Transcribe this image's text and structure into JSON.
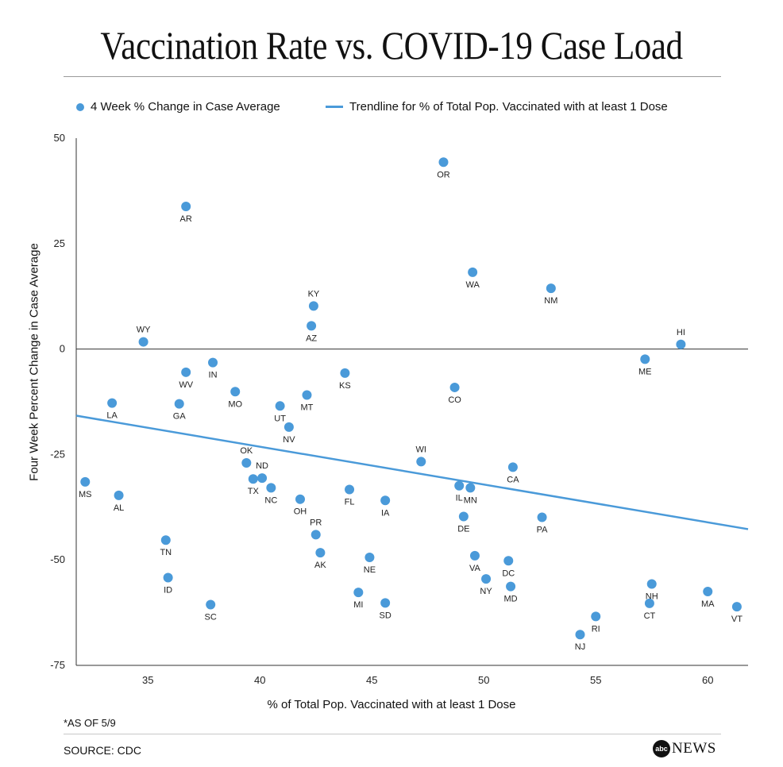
{
  "title": "Vaccination Rate vs. COVID-19 Case Load",
  "legend": {
    "scatter_label": "4 Week % Change in Case Average",
    "trend_label": "Trendline for % of Total Pop. Vaccinated with at least 1 Dose"
  },
  "footnote": "*AS OF 5/9",
  "source": "SOURCE: CDC",
  "brand": {
    "logo": "abc",
    "name": "NEWS"
  },
  "colors": {
    "point": "#4a9ad9",
    "trend": "#4a9ad9",
    "axis": "#333333"
  },
  "chart_data": {
    "type": "scatter",
    "title": "Vaccination Rate vs. COVID-19 Case Load",
    "xlabel": "% of Total Pop. Vaccinated with at least 1 Dose",
    "ylabel": "Four Week Percent Change in Case Average",
    "xlim": [
      31.8,
      61.8
    ],
    "ylim": [
      -75,
      50
    ],
    "xticks": [
      35,
      40,
      45,
      50,
      55,
      60
    ],
    "yticks": [
      50,
      25,
      0,
      -25,
      -50,
      -75
    ],
    "zero_line": true,
    "series": [
      {
        "name": "4 Week % Change in Case Average",
        "points": [
          {
            "label": "MS",
            "x": 32.2,
            "y": -31.5
          },
          {
            "label": "LA",
            "x": 33.4,
            "y": -12.8
          },
          {
            "label": "AL",
            "x": 33.7,
            "y": -34.7
          },
          {
            "label": "WY",
            "x": 34.8,
            "y": 1.7
          },
          {
            "label": "TN",
            "x": 35.8,
            "y": -45.3
          },
          {
            "label": "ID",
            "x": 35.9,
            "y": -54.2
          },
          {
            "label": "AR",
            "x": 36.7,
            "y": 33.8
          },
          {
            "label": "WV",
            "x": 36.7,
            "y": -5.5
          },
          {
            "label": "GA",
            "x": 36.4,
            "y": -13.0
          },
          {
            "label": "IN",
            "x": 37.9,
            "y": -3.2
          },
          {
            "label": "SC",
            "x": 37.8,
            "y": -60.6
          },
          {
            "label": "MO",
            "x": 38.9,
            "y": -10.1
          },
          {
            "label": "OK",
            "x": 39.4,
            "y": -27.0
          },
          {
            "label": "TX",
            "x": 39.7,
            "y": -30.8
          },
          {
            "label": "ND",
            "x": 40.1,
            "y": -30.6
          },
          {
            "label": "NC",
            "x": 40.5,
            "y": -32.9
          },
          {
            "label": "UT",
            "x": 40.9,
            "y": -13.5
          },
          {
            "label": "NV",
            "x": 41.3,
            "y": -18.5
          },
          {
            "label": "OH",
            "x": 41.8,
            "y": -35.6
          },
          {
            "label": "MT",
            "x": 42.1,
            "y": -10.9
          },
          {
            "label": "KY",
            "x": 42.4,
            "y": 10.2
          },
          {
            "label": "AZ",
            "x": 42.3,
            "y": 5.5
          },
          {
            "label": "PR",
            "x": 42.5,
            "y": -44.0
          },
          {
            "label": "AK",
            "x": 42.7,
            "y": -48.3
          },
          {
            "label": "KS",
            "x": 43.8,
            "y": -5.7
          },
          {
            "label": "FL",
            "x": 44.0,
            "y": -33.3
          },
          {
            "label": "MI",
            "x": 44.4,
            "y": -57.7
          },
          {
            "label": "NE",
            "x": 44.9,
            "y": -49.4
          },
          {
            "label": "IA",
            "x": 45.6,
            "y": -35.9
          },
          {
            "label": "SD",
            "x": 45.6,
            "y": -60.2
          },
          {
            "label": "WI",
            "x": 47.2,
            "y": -26.7
          },
          {
            "label": "OR",
            "x": 48.2,
            "y": 44.3
          },
          {
            "label": "CO",
            "x": 48.7,
            "y": -9.1
          },
          {
            "label": "IL",
            "x": 48.9,
            "y": -32.4
          },
          {
            "label": "DE",
            "x": 49.1,
            "y": -39.7
          },
          {
            "label": "MN",
            "x": 49.4,
            "y": -32.9
          },
          {
            "label": "WA",
            "x": 49.5,
            "y": 18.2
          },
          {
            "label": "VA",
            "x": 49.6,
            "y": -49.0
          },
          {
            "label": "NY",
            "x": 50.1,
            "y": -54.5
          },
          {
            "label": "DC",
            "x": 51.1,
            "y": -50.2
          },
          {
            "label": "MD",
            "x": 51.2,
            "y": -56.3
          },
          {
            "label": "CA",
            "x": 51.3,
            "y": -28.0
          },
          {
            "label": "PA",
            "x": 52.6,
            "y": -39.9
          },
          {
            "label": "NM",
            "x": 53.0,
            "y": 14.4
          },
          {
            "label": "NJ",
            "x": 54.3,
            "y": -67.7
          },
          {
            "label": "RI",
            "x": 55.0,
            "y": -63.4
          },
          {
            "label": "ME",
            "x": 57.2,
            "y": -2.4
          },
          {
            "label": "NH",
            "x": 57.5,
            "y": -55.7
          },
          {
            "label": "CT",
            "x": 57.4,
            "y": -60.3
          },
          {
            "label": "MA",
            "x": 60.0,
            "y": -57.5
          },
          {
            "label": "HI",
            "x": 58.8,
            "y": 1.1
          },
          {
            "label": "VT",
            "x": 61.3,
            "y": -61.1
          }
        ]
      }
    ],
    "trendline": {
      "name": "Trendline for % of Total Pop. Vaccinated with at least 1 Dose",
      "points": [
        {
          "x": 31.8,
          "y": -15.8
        },
        {
          "x": 61.8,
          "y": -42.7
        }
      ]
    }
  }
}
